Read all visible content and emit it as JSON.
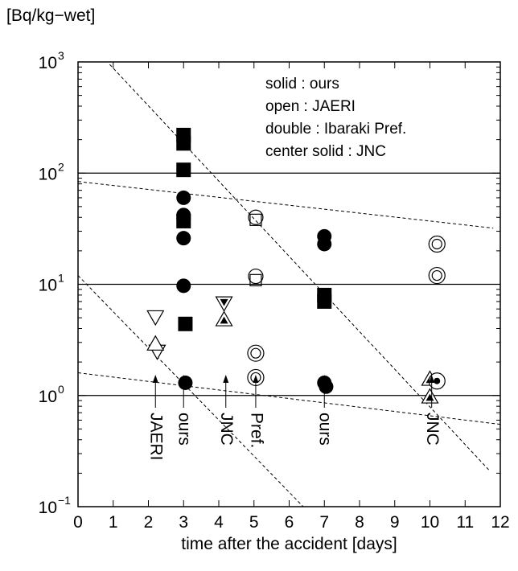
{
  "chart_data": {
    "type": "scatter",
    "y_unit_label": "[Bq/kg−wet]",
    "xlabel": "time after the accident [days]",
    "xlim": [
      0,
      12
    ],
    "ylim": [
      0.1,
      1000
    ],
    "yscale": "log",
    "x_ticks": [
      "0",
      "1",
      "2",
      "3",
      "4",
      "5",
      "6",
      "7",
      "8",
      "9",
      "10",
      "11",
      "12"
    ],
    "y_ticks": [
      {
        "value": 0.1,
        "base": "10",
        "exp": "−1"
      },
      {
        "value": 1,
        "base": "10",
        "exp": "0"
      },
      {
        "value": 10,
        "base": "10",
        "exp": "1"
      },
      {
        "value": 100,
        "base": "10",
        "exp": "2"
      },
      {
        "value": 1000,
        "base": "10",
        "exp": "3"
      }
    ],
    "legend": [
      "solid : ours",
      "open : JAERI",
      "double : Ibaraki Pref.",
      "center solid : JNC"
    ],
    "reference_lines": [
      1,
      10,
      100
    ],
    "fit_lines": [
      {
        "x": [
          0.9,
          11.7
        ],
        "y": [
          950,
          0.21
        ]
      },
      {
        "x": [
          0,
          11.8
        ],
        "y": [
          84,
          32
        ]
      },
      {
        "x": [
          0,
          6.4
        ],
        "y": [
          12,
          0.1
        ]
      },
      {
        "x": [
          0,
          12
        ],
        "y": [
          1.6,
          0.55
        ]
      }
    ],
    "series": [
      {
        "marker": "filled-square",
        "points": [
          [
            3.0,
            220
          ],
          [
            3.0,
            185
          ],
          [
            3.0,
            107
          ],
          [
            3.0,
            37
          ],
          [
            3.05,
            4.4
          ],
          [
            7.0,
            8.0
          ],
          [
            7.0,
            7.0
          ]
        ]
      },
      {
        "marker": "filled-circle",
        "points": [
          [
            3.0,
            60
          ],
          [
            3.0,
            42
          ],
          [
            3.0,
            39
          ],
          [
            3.0,
            26
          ],
          [
            3.0,
            9.7
          ],
          [
            3.05,
            1.3
          ],
          [
            7.0,
            27
          ],
          [
            7.0,
            23
          ],
          [
            7.0,
            1.3
          ],
          [
            7.05,
            1.2
          ]
        ]
      },
      {
        "marker": "open-triangle-down",
        "points": [
          [
            2.2,
            5.1
          ],
          [
            2.25,
            2.5
          ]
        ]
      },
      {
        "marker": "open-triangle-up",
        "points": [
          [
            2.2,
            2.9
          ]
        ]
      },
      {
        "marker": "open-square",
        "points": [
          [
            5.05,
            38
          ],
          [
            5.05,
            10.9
          ]
        ]
      },
      {
        "marker": "open-circle",
        "points": [
          [
            5.05,
            40
          ],
          [
            5.05,
            11.8
          ]
        ]
      },
      {
        "marker": "double-circle",
        "points": [
          [
            5.05,
            2.4
          ],
          [
            5.05,
            1.45
          ],
          [
            10.2,
            23
          ],
          [
            10.2,
            12
          ]
        ]
      },
      {
        "marker": "triangle-down-center-solid",
        "points": [
          [
            4.15,
            6.8
          ]
        ]
      },
      {
        "marker": "triangle-up-center-solid",
        "points": [
          [
            4.15,
            4.8
          ],
          [
            10.0,
            1.4
          ],
          [
            10.0,
            0.97
          ]
        ]
      },
      {
        "marker": "circle-center-solid",
        "points": [
          [
            10.2,
            1.35
          ]
        ]
      }
    ],
    "annotations": [
      {
        "text": "JAERI",
        "x": 2.2
      },
      {
        "text": "ours",
        "x": 3.0
      },
      {
        "text": "JNC",
        "x": 4.2
      },
      {
        "text": "Pref.",
        "x": 5.05
      },
      {
        "text": "ours",
        "x": 7.0
      },
      {
        "text": "JNC",
        "x": 10.05
      }
    ]
  }
}
